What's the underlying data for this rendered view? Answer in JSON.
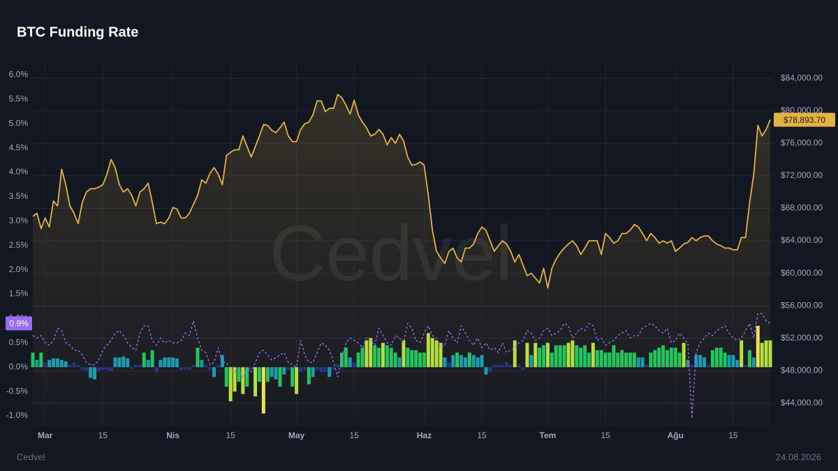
{
  "title": "BTC Funding Rate",
  "watermark": "Cedvel",
  "footer": {
    "brand": "Cedvel",
    "date": "24.08.2026"
  },
  "chart_data": {
    "type": "combo",
    "grid": true,
    "categories": [
      null,
      null,
      null,
      "Mar",
      null,
      null,
      null,
      null,
      null,
      null,
      null,
      null,
      null,
      null,
      null,
      null,
      null,
      "15",
      null,
      null,
      null,
      null,
      null,
      null,
      null,
      null,
      null,
      null,
      null,
      null,
      null,
      null,
      null,
      null,
      "Nis",
      null,
      null,
      null,
      null,
      null,
      null,
      null,
      null,
      null,
      null,
      null,
      null,
      null,
      "15",
      null,
      null,
      null,
      null,
      null,
      null,
      null,
      null,
      null,
      null,
      null,
      null,
      null,
      null,
      null,
      "May",
      null,
      null,
      null,
      null,
      null,
      null,
      null,
      null,
      null,
      null,
      null,
      null,
      null,
      "15",
      null,
      null,
      null,
      null,
      null,
      null,
      null,
      null,
      null,
      null,
      null,
      null,
      null,
      null,
      null,
      null,
      "Haz",
      null,
      null,
      null,
      null,
      null,
      null,
      null,
      null,
      null,
      null,
      null,
      null,
      null,
      "15",
      null,
      null,
      null,
      null,
      null,
      null,
      null,
      null,
      null,
      null,
      null,
      null,
      null,
      null,
      null,
      "Tem",
      null,
      null,
      null,
      null,
      null,
      null,
      null,
      null,
      null,
      null,
      null,
      null,
      null,
      "15",
      null,
      null,
      null,
      null,
      null,
      null,
      null,
      null,
      null,
      null,
      null,
      null,
      null,
      null,
      null,
      null,
      "Ağu",
      null,
      null,
      null,
      null,
      null,
      null,
      null,
      null,
      null,
      null,
      null,
      null,
      null,
      "15",
      null,
      null,
      null,
      null,
      null,
      null,
      null,
      null,
      null
    ],
    "ylim": [
      -1.2,
      6.25
    ],
    "yticks": [
      {
        "value": -1.0,
        "label": "-1.0%"
      },
      {
        "value": -0.5,
        "label": "-0.5%"
      },
      {
        "value": 0.0,
        "label": "0.0%"
      },
      {
        "value": 0.5,
        "label": "0.5%"
      },
      {
        "value": 1.0,
        "label": "1.0%"
      },
      {
        "value": 1.5,
        "label": "1.5%"
      },
      {
        "value": 2.0,
        "label": "2.0%"
      },
      {
        "value": 2.5,
        "label": "2.5%"
      },
      {
        "value": 3.0,
        "label": "3.0%"
      },
      {
        "value": 3.5,
        "label": "3.5%"
      },
      {
        "value": 4.0,
        "label": "4.0%"
      },
      {
        "value": 4.5,
        "label": "4.5%"
      },
      {
        "value": 5.0,
        "label": "5.0%"
      },
      {
        "value": 5.5,
        "label": "5.5%"
      },
      {
        "value": 6.0,
        "label": "6.0%"
      }
    ],
    "y2lim": [
      41250,
      85900
    ],
    "y2ticks": [
      {
        "value": 44000,
        "label": "$44,000.00"
      },
      {
        "value": 48000,
        "label": "$48,000.00"
      },
      {
        "value": 52000,
        "label": "$52,000.00"
      },
      {
        "value": 56000,
        "label": "$56,000.00"
      },
      {
        "value": 60000,
        "label": "$60,000.00"
      },
      {
        "value": 64000,
        "label": "$64,000.00"
      },
      {
        "value": 68000,
        "label": "$68,000.00"
      },
      {
        "value": 72000,
        "label": "$72,000.00"
      },
      {
        "value": 76000,
        "label": "$76,000.00"
      },
      {
        "value": 80000,
        "label": "$80,000.00"
      },
      {
        "value": 84000,
        "label": "$84,000.00"
      }
    ],
    "series": [
      {
        "type": "line",
        "axis": "y2",
        "area": true,
        "color": "#e3b341",
        "last_label": "$78,893.70",
        "values": [
          67000,
          67400,
          65500,
          66800,
          65700,
          68900,
          68300,
          72800,
          70900,
          68300,
          67400,
          66100,
          68700,
          70000,
          70400,
          70400,
          70600,
          70900,
          72200,
          74000,
          73000,
          70900,
          70000,
          70400,
          69600,
          68300,
          70000,
          70400,
          71100,
          68700,
          66100,
          66300,
          66100,
          66800,
          68100,
          67900,
          66800,
          66800,
          67400,
          68500,
          69600,
          71500,
          71100,
          72300,
          73000,
          72200,
          70900,
          74500,
          74900,
          75200,
          75200,
          76900,
          75600,
          74300,
          75600,
          76900,
          78300,
          78200,
          77600,
          77300,
          77900,
          78600,
          76900,
          76200,
          76200,
          77700,
          78400,
          78600,
          79500,
          81200,
          81200,
          79900,
          80300,
          80300,
          82000,
          81600,
          80700,
          79600,
          81300,
          79500,
          78600,
          77900,
          76900,
          77100,
          77700,
          77100,
          75800,
          76700,
          76000,
          77100,
          76300,
          74300,
          73300,
          73400,
          73700,
          73300,
          69600,
          65300,
          62700,
          61900,
          61200,
          62700,
          63100,
          61900,
          61400,
          63100,
          63100,
          63600,
          64900,
          65700,
          65300,
          64000,
          62700,
          63400,
          64000,
          63600,
          62700,
          61400,
          62300,
          61000,
          59700,
          60000,
          59400,
          58800,
          60600,
          58200,
          60600,
          61700,
          62500,
          63100,
          63600,
          64000,
          63400,
          62300,
          63100,
          64000,
          64000,
          64000,
          62300,
          64900,
          64400,
          63700,
          64000,
          64900,
          64900,
          65300,
          66000,
          65700,
          64900,
          64000,
          64900,
          64400,
          63700,
          64000,
          63700,
          64000,
          62700,
          63100,
          63600,
          63800,
          64400,
          64000,
          64400,
          64600,
          64600,
          64000,
          63600,
          63400,
          63100,
          63100,
          62900,
          62900,
          64400,
          64400,
          68700,
          72200,
          78200,
          76900,
          77700,
          78893.7
        ]
      },
      {
        "type": "bar",
        "colors": [
          "#28338c",
          "#1b9db0",
          "#22c55e",
          "#b6e03f",
          "#f2e14a"
        ],
        "values": [
          0.3,
          0.15,
          0.3,
          0.1,
          0.15,
          0.18,
          0.18,
          0.15,
          0.12,
          0.05,
          0.1,
          0.05,
          -0.05,
          -0.08,
          -0.22,
          -0.25,
          -0.08,
          -0.05,
          -0.05,
          -0.08,
          0.2,
          0.2,
          0.22,
          0.18,
          -0.03,
          0.05,
          0.05,
          0.3,
          0.15,
          0.35,
          -0.1,
          0.15,
          0.2,
          0.2,
          0.2,
          0.18,
          -0.05,
          -0.05,
          -0.05,
          0.05,
          0.4,
          0.15,
          0.05,
          -0.05,
          -0.2,
          0.05,
          0.25,
          -0.4,
          -0.7,
          -0.5,
          -0.3,
          -0.55,
          -0.4,
          -0.05,
          -0.6,
          -0.3,
          -0.95,
          -0.3,
          -0.2,
          -0.25,
          -0.4,
          -0.15,
          -0.05,
          -0.4,
          -0.55,
          -0.1,
          -0.05,
          -0.35,
          -0.2,
          -0.05,
          -0.1,
          -0.1,
          -0.2,
          -0.05,
          0.05,
          0.3,
          0.4,
          0.2,
          0.1,
          0.3,
          0.4,
          0.55,
          0.6,
          0.45,
          0.4,
          0.5,
          0.45,
          0.4,
          0.3,
          0.2,
          0.55,
          0.4,
          0.35,
          0.35,
          0.3,
          0.3,
          0.7,
          0.6,
          0.55,
          0.5,
          0.2,
          0.1,
          0.25,
          0.3,
          0.25,
          0.2,
          0.3,
          0.25,
          0.2,
          0.25,
          -0.15,
          -0.1,
          0.05,
          0.05,
          0.05,
          0.1,
          0.05,
          0.55,
          0.05,
          -0.05,
          0.5,
          0.25,
          0.5,
          0.4,
          0.45,
          0.5,
          0.3,
          0.45,
          0.45,
          0.45,
          0.5,
          0.55,
          0.45,
          0.4,
          0.45,
          0.3,
          0.5,
          0.35,
          0.35,
          0.3,
          0.3,
          0.45,
          0.3,
          0.35,
          0.3,
          0.3,
          0.3,
          0.2,
          0.2,
          0.05,
          0.3,
          0.35,
          0.4,
          0.45,
          0.35,
          0.4,
          0.4,
          0.3,
          0.5,
          0.15,
          0.05,
          0.25,
          0.25,
          0.2,
          0.05,
          0.35,
          0.4,
          0.4,
          0.3,
          0.25,
          0.25,
          0.15,
          0.55,
          0.05,
          0.35,
          0.2,
          0.85,
          0.5,
          0.55,
          0.55
        ]
      },
      {
        "type": "line",
        "dashed": true,
        "color": "#9b6bff",
        "last_label": "0.9%",
        "values": [
          0.65,
          0.6,
          0.65,
          0.5,
          0.45,
          0.55,
          0.8,
          0.75,
          0.5,
          0.45,
          0.35,
          0.35,
          0.25,
          0.1,
          0.05,
          0.05,
          0.15,
          0.35,
          0.45,
          0.55,
          0.7,
          0.75,
          0.65,
          0.5,
          0.4,
          0.35,
          0.7,
          0.85,
          0.85,
          0.55,
          0.45,
          0.6,
          0.5,
          0.55,
          0.5,
          0.5,
          0.55,
          0.7,
          0.65,
          0.95,
          0.6,
          0.35,
          0.3,
          0.05,
          0.1,
          0.4,
          0.1,
          0.1,
          -0.05,
          -0.1,
          -0.05,
          -0.2,
          0,
          -0.1,
          0.1,
          0.3,
          0.35,
          0.25,
          0.15,
          0.2,
          0.25,
          0.3,
          0.1,
          0.05,
          0,
          0.55,
          0.25,
          0.1,
          0.1,
          0.3,
          0.5,
          0.45,
          0.35,
          0.1,
          -0.2,
          0.2,
          0.5,
          0.6,
          0.55,
          0.5,
          0.4,
          0.6,
          0.55,
          0.45,
          0.8,
          0.65,
          0.5,
          0.45,
          0.65,
          0.6,
          0.5,
          0.9,
          0.8,
          0.55,
          0.5,
          0.7,
          0.85,
          0.65,
          0.6,
          0.4,
          0.45,
          0.75,
          0.6,
          0.5,
          0.85,
          0.7,
          0.55,
          0.45,
          0.6,
          0.4,
          0.5,
          0.35,
          0.4,
          0.3,
          0.5,
          0.3,
          0.35,
          0.4,
          0.5,
          0.55,
          0.75,
          0.7,
          0.55,
          0.6,
          0.75,
          0.8,
          0.65,
          0.7,
          0.75,
          0.9,
          0.85,
          0.6,
          0.7,
          0.8,
          0.75,
          0.9,
          0.85,
          0.55,
          0.6,
          0.45,
          0.5,
          0.55,
          0.65,
          0.7,
          0.75,
          0.6,
          0.65,
          0.65,
          0.8,
          0.85,
          0.9,
          0.85,
          0.75,
          0.7,
          0.8,
          0.5,
          0.55,
          0.7,
          0.6,
          0.5,
          -1.05,
          0.3,
          0.5,
          0.6,
          0.7,
          0.65,
          0.75,
          0.8,
          0.85,
          0.7,
          0.6,
          0.55,
          0.6,
          0.75,
          0.9,
          0.6,
          1.1,
          1.1,
          0.95,
          0.9
        ]
      }
    ]
  }
}
